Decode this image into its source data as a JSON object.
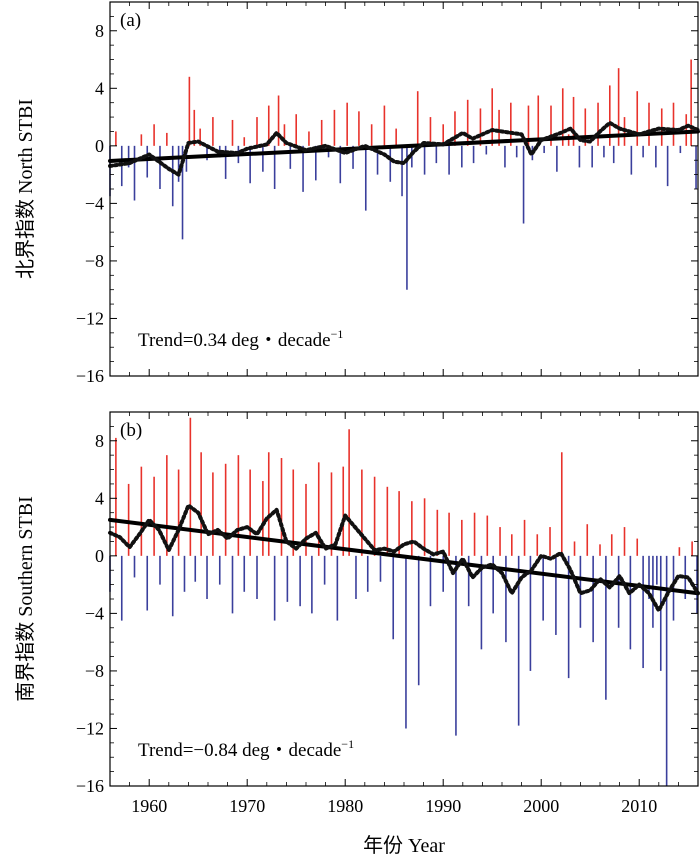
{
  "colors": {
    "positive": "#e8322b",
    "negative": "#3a3f9c",
    "smooth": "#111111",
    "trend": "#000000",
    "axis": "#000000"
  },
  "x_axis": {
    "label": "年份 Year",
    "range": [
      1956,
      2016
    ],
    "ticks": [
      1960,
      1970,
      1980,
      1990,
      2000,
      2010
    ],
    "tick_labels": [
      "1960",
      "1970",
      "1980",
      "1990",
      "2000",
      "2010"
    ]
  },
  "chart_data": [
    {
      "type": "area",
      "panel_label": "(a)",
      "title": "",
      "ylabel": "北界指数 North STBI",
      "xlabel": "年份 Year",
      "ylim": [
        -16,
        10
      ],
      "yticks": [
        8,
        4,
        0,
        -4,
        -8,
        -12,
        -16
      ],
      "ytick_labels": [
        "8",
        "4",
        "0",
        "−4",
        "−8",
        "−12",
        "−16"
      ],
      "trend_text": "Trend=0.34 deg・decade",
      "trend_exponent": "−1",
      "trend_line": {
        "x": [
          1956,
          2016
        ],
        "y": [
          -1.05,
          1.0
        ]
      },
      "smoothed_series": {
        "name": "smoothed",
        "x": [
          1956,
          1958,
          1960,
          1962,
          1963,
          1964,
          1965,
          1967,
          1969,
          1970,
          1972,
          1973,
          1974,
          1976,
          1978,
          1980,
          1982,
          1984,
          1985,
          1986,
          1987,
          1988,
          1990,
          1992,
          1993,
          1995,
          1996,
          1998,
          1999,
          2000,
          2002,
          2003,
          2004,
          2005,
          2006,
          2007,
          2008,
          2010,
          2011,
          2012,
          2014,
          2015,
          2016
        ],
        "y": [
          -1.4,
          -1.2,
          -0.6,
          -1.6,
          -2.0,
          0.2,
          0.3,
          -0.4,
          -0.5,
          -0.2,
          0.1,
          0.9,
          0.2,
          -0.3,
          0.0,
          -0.5,
          0.0,
          -0.6,
          -1.1,
          -1.2,
          -0.4,
          0.2,
          0.1,
          0.9,
          0.5,
          1.1,
          1.0,
          0.8,
          -0.6,
          0.4,
          0.9,
          1.2,
          0.4,
          0.3,
          1.0,
          1.6,
          1.2,
          0.8,
          1.0,
          1.2,
          1.1,
          1.4,
          1.1
        ]
      },
      "monthly_series": {
        "name": "monthly anomaly",
        "x": [
          1956,
          1956.6,
          1957.2,
          1957.9,
          1958.5,
          1959.2,
          1959.8,
          1960.5,
          1961.1,
          1961.8,
          1962.4,
          1963.0,
          1963.4,
          1963.8,
          1964.1,
          1964.6,
          1965.2,
          1965.9,
          1966.5,
          1967.2,
          1967.8,
          1968.5,
          1969.1,
          1969.7,
          1970.3,
          1971.0,
          1971.6,
          1972.2,
          1972.8,
          1973.2,
          1973.8,
          1974.4,
          1975.0,
          1975.7,
          1976.3,
          1977.0,
          1977.6,
          1978.3,
          1978.9,
          1979.5,
          1980.2,
          1980.8,
          1981.4,
          1982.1,
          1982.7,
          1983.3,
          1984.0,
          1984.6,
          1985.2,
          1985.8,
          1986.3,
          1986.8,
          1987.4,
          1988.1,
          1988.7,
          1989.3,
          1990.0,
          1990.6,
          1991.2,
          1991.9,
          1992.5,
          1993.1,
          1993.8,
          1994.4,
          1995.0,
          1995.7,
          1996.3,
          1996.9,
          1997.5,
          1998.2,
          1998.7,
          1999.1,
          1999.7,
          2000.3,
          2001.0,
          2001.6,
          2002.2,
          2002.8,
          2003.3,
          2003.9,
          2004.5,
          2005.2,
          2005.8,
          2006.4,
          2007.0,
          2007.4,
          2007.9,
          2008.5,
          2009.2,
          2009.8,
          2010.4,
          2011.0,
          2011.7,
          2012.3,
          2012.9,
          2013.5,
          2014.2,
          2014.8,
          2015.3,
          2015.8
        ],
        "y": [
          -3.5,
          1.0,
          -2.8,
          -1.5,
          -3.8,
          0.8,
          -2.2,
          1.5,
          -3.0,
          0.9,
          -4.2,
          -2.5,
          -6.5,
          -1.8,
          4.8,
          2.5,
          1.2,
          -1.0,
          2.0,
          -0.8,
          -2.3,
          1.8,
          -1.2,
          0.6,
          -2.6,
          2.0,
          -1.8,
          2.8,
          -3.0,
          3.5,
          1.5,
          -1.6,
          2.2,
          -3.2,
          1.0,
          -2.4,
          1.8,
          -0.8,
          2.5,
          -2.6,
          3.0,
          -1.6,
          2.4,
          -4.5,
          1.5,
          -2.0,
          2.8,
          -2.5,
          1.2,
          -3.5,
          -10.0,
          -1.5,
          3.8,
          -2.0,
          2.0,
          -1.2,
          1.5,
          -2.0,
          2.4,
          -1.5,
          3.2,
          -1.2,
          2.6,
          -0.6,
          4.0,
          2.5,
          -1.5,
          3.0,
          -0.8,
          -5.4,
          2.8,
          -1.0,
          3.5,
          -0.5,
          2.8,
          -1.8,
          4.0,
          0.8,
          3.4,
          -1.5,
          2.6,
          -1.5,
          3.0,
          -0.8,
          4.2,
          -1.2,
          5.4,
          2.0,
          -2.0,
          3.8,
          -0.8,
          3.0,
          -1.5,
          2.6,
          -2.8,
          3.0,
          -0.5,
          2.2,
          6.0,
          -3.0
        ]
      }
    },
    {
      "type": "area",
      "panel_label": "(b)",
      "title": "",
      "ylabel": "南界指数 Southern STBI",
      "xlabel": "年份 Year",
      "ylim": [
        -16,
        10
      ],
      "yticks": [
        8,
        4,
        0,
        -4,
        -8,
        -12,
        -16
      ],
      "ytick_labels": [
        "8",
        "4",
        "0",
        "−4",
        "−8",
        "−12",
        "−16"
      ],
      "trend_text": "Trend=−0.84 deg・decade",
      "trend_exponent": "−1",
      "trend_line": {
        "x": [
          1956,
          2016
        ],
        "y": [
          2.5,
          -2.6
        ]
      },
      "smoothed_series": {
        "name": "smoothed",
        "x": [
          1956,
          1957,
          1958,
          1959,
          1960,
          1961,
          1962,
          1963,
          1964,
          1965,
          1966,
          1967,
          1968,
          1969,
          1970,
          1971,
          1972,
          1973,
          1974,
          1975,
          1976,
          1977,
          1978,
          1979,
          1980,
          1981,
          1982,
          1983,
          1984,
          1985,
          1986,
          1987,
          1988,
          1989,
          1990,
          1991,
          1992,
          1993,
          1994,
          1995,
          1996,
          1997,
          1998,
          1999,
          2000,
          2001,
          2002,
          2003,
          2004,
          2005,
          2006,
          2007,
          2008,
          2009,
          2010,
          2011,
          2012,
          2013,
          2014,
          2015,
          2016
        ],
        "y": [
          1.6,
          1.3,
          0.6,
          1.5,
          2.5,
          1.8,
          0.4,
          1.8,
          3.5,
          3.0,
          1.5,
          1.8,
          1.2,
          1.8,
          2.0,
          1.5,
          2.6,
          3.2,
          1.0,
          0.5,
          1.2,
          1.6,
          0.5,
          0.8,
          2.8,
          2.0,
          1.2,
          0.4,
          0.5,
          0.3,
          0.8,
          1.0,
          0.5,
          0.1,
          0.3,
          -1.2,
          -0.2,
          -1.5,
          -0.8,
          -0.6,
          -1.2,
          -2.6,
          -1.5,
          -1.0,
          0.0,
          -0.2,
          0.2,
          -1.0,
          -2.6,
          -2.4,
          -1.6,
          -2.2,
          -1.4,
          -2.6,
          -2.0,
          -2.6,
          -3.8,
          -2.5,
          -1.4,
          -1.5,
          -2.6
        ]
      },
      "monthly_series": {
        "name": "monthly anomaly",
        "x": [
          1956,
          1956.6,
          1957.2,
          1957.9,
          1958.5,
          1959.2,
          1959.8,
          1960.5,
          1961.1,
          1961.8,
          1962.4,
          1963.0,
          1963.6,
          1964.2,
          1964.7,
          1965.3,
          1965.9,
          1966.5,
          1967.2,
          1967.8,
          1968.5,
          1969.1,
          1969.7,
          1970.3,
          1971.0,
          1971.6,
          1972.2,
          1972.8,
          1973.5,
          1974.1,
          1974.7,
          1975.4,
          1976.0,
          1976.6,
          1977.3,
          1977.9,
          1978.6,
          1979.2,
          1979.8,
          1980.4,
          1981.1,
          1981.7,
          1982.3,
          1983.0,
          1983.6,
          1984.3,
          1984.9,
          1985.5,
          1986.2,
          1986.8,
          1987.5,
          1988.1,
          1988.7,
          1989.4,
          1990.0,
          1990.6,
          1991.3,
          1991.9,
          1992.6,
          1993.2,
          1993.9,
          1994.5,
          1995.1,
          1995.8,
          1996.4,
          1997.0,
          1997.7,
          1998.3,
          1998.9,
          1999.6,
          2000.2,
          2000.9,
          2001.5,
          2002.1,
          2002.8,
          2003.4,
          2004.0,
          2004.7,
          2005.3,
          2006.0,
          2006.6,
          2007.2,
          2007.9,
          2008.5,
          2009.1,
          2009.8,
          2010.4,
          2011.0,
          2011.4,
          2011.8,
          2012.2,
          2012.8,
          2013.5,
          2014.1,
          2014.7,
          2015.4,
          2015.9
        ],
        "y": [
          -2.5,
          8.2,
          -4.5,
          5.0,
          -1.5,
          6.2,
          -3.8,
          5.5,
          -2.0,
          7.0,
          -4.2,
          6.0,
          -2.5,
          9.6,
          -1.8,
          7.2,
          -3.0,
          5.8,
          -2.0,
          6.4,
          -4.0,
          7.0,
          -2.5,
          6.0,
          -3.0,
          5.2,
          7.2,
          -4.5,
          6.8,
          -3.2,
          6.0,
          -3.5,
          5.0,
          -4.0,
          6.5,
          -2.0,
          5.8,
          -4.5,
          6.2,
          8.8,
          -3.0,
          6.0,
          -2.5,
          5.5,
          -1.8,
          4.8,
          -5.8,
          4.5,
          -12.0,
          3.8,
          -9.0,
          4.0,
          -3.5,
          3.2,
          -2.5,
          3.0,
          -12.5,
          2.5,
          -3.5,
          3.0,
          -6.5,
          2.8,
          -4.0,
          2.0,
          -6.0,
          1.5,
          -11.8,
          2.5,
          -8.0,
          1.5,
          -4.5,
          2.0,
          -5.5,
          7.2,
          -8.5,
          1.0,
          -5.0,
          2.2,
          -6.0,
          0.8,
          -10.0,
          1.5,
          -5.0,
          2.0,
          -6.5,
          1.2,
          -7.8,
          -3.0,
          -5.0,
          -2.0,
          -8.0,
          -16.0,
          -4.5,
          0.6,
          -3.0,
          1.0,
          -4.0
        ]
      }
    }
  ]
}
